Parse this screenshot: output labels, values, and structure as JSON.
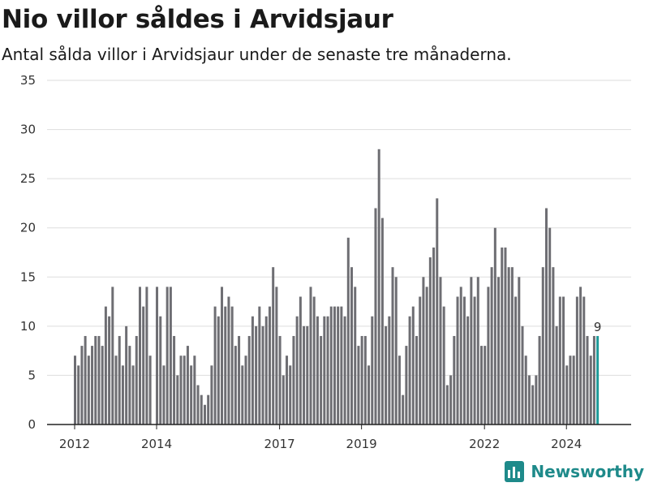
{
  "title": "Nio villor såldes i Arvidsjaur",
  "subtitle": "Antal sålda villor i Arvidsjaur under de senaste tre månaderna.",
  "brand": {
    "name": "Newsworthy",
    "color": "#1e8a8a",
    "icon": "newsworthy-logo-icon"
  },
  "colors": {
    "bar": "#6e6e73",
    "highlight": "#1e9a98"
  },
  "chart_data": {
    "type": "bar",
    "ylim": [
      0,
      35
    ],
    "yticks": [
      0,
      5,
      10,
      15,
      20,
      25,
      30,
      35
    ],
    "xtick_labels": [
      {
        "label": "2012",
        "index": 0
      },
      {
        "label": "2014",
        "index": 24
      },
      {
        "label": "2017",
        "index": 60
      },
      {
        "label": "2019",
        "index": 84
      },
      {
        "label": "2022",
        "index": 120
      },
      {
        "label": "2024",
        "index": 144
      }
    ],
    "grid": true,
    "highlight_last": true,
    "last_value_label": "9",
    "values": [
      7,
      6,
      8,
      9,
      7,
      8,
      9,
      9,
      8,
      12,
      11,
      14,
      7,
      9,
      6,
      10,
      8,
      6,
      9,
      14,
      12,
      14,
      7,
      0,
      14,
      11,
      6,
      14,
      14,
      9,
      5,
      7,
      7,
      8,
      6,
      7,
      4,
      3,
      2,
      3,
      6,
      12,
      11,
      14,
      12,
      13,
      12,
      8,
      9,
      6,
      7,
      9,
      11,
      10,
      12,
      10,
      11,
      12,
      16,
      14,
      9,
      5,
      7,
      6,
      9,
      11,
      13,
      10,
      10,
      14,
      13,
      11,
      9,
      11,
      11,
      12,
      12,
      12,
      12,
      11,
      19,
      16,
      14,
      8,
      9,
      9,
      6,
      11,
      22,
      28,
      21,
      10,
      11,
      16,
      15,
      7,
      3,
      8,
      11,
      12,
      9,
      13,
      15,
      14,
      17,
      18,
      23,
      15,
      12,
      4,
      5,
      9,
      13,
      14,
      13,
      11,
      15,
      13,
      15,
      8,
      8,
      14,
      16,
      20,
      15,
      18,
      18,
      16,
      16,
      13,
      15,
      10,
      7,
      5,
      4,
      5,
      9,
      16,
      22,
      20,
      16,
      10,
      13,
      13,
      6,
      7,
      7,
      13,
      14,
      13,
      9,
      7,
      9,
      9
    ]
  }
}
